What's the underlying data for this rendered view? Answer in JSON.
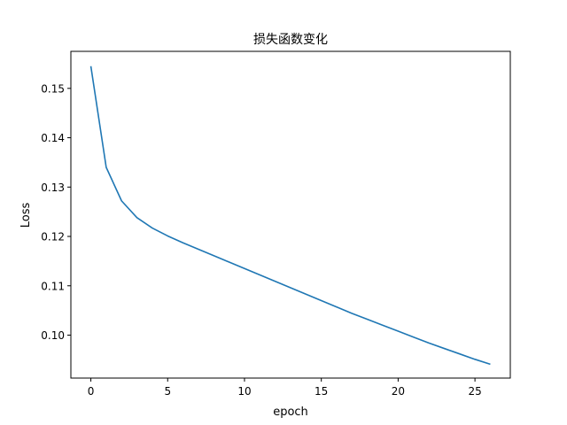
{
  "chart_data": {
    "type": "line",
    "title": "损失函数变化",
    "xlabel": "epoch",
    "ylabel": "Loss",
    "xlim": [
      -1.3,
      27.3
    ],
    "ylim": [
      0.0913,
      0.1575
    ],
    "xticks": [
      0,
      5,
      10,
      15,
      20,
      25
    ],
    "yticks": [
      0.1,
      0.11,
      0.12,
      0.13,
      0.14,
      0.15
    ],
    "xtick_labels": [
      "0",
      "5",
      "10",
      "15",
      "20",
      "25"
    ],
    "ytick_labels": [
      "0.10",
      "0.11",
      "0.12",
      "0.13",
      "0.14",
      "0.15"
    ],
    "grid": false,
    "series": [
      {
        "color": "#1f77b4",
        "x": [
          0,
          1,
          2,
          3,
          4,
          5,
          6,
          7,
          8,
          9,
          10,
          11,
          12,
          13,
          14,
          15,
          16,
          17,
          18,
          19,
          20,
          21,
          22,
          23,
          24,
          25,
          26
        ],
        "y": [
          0.1545,
          0.134,
          0.1272,
          0.1238,
          0.1217,
          0.1201,
          0.1187,
          0.1174,
          0.1161,
          0.1148,
          0.1135,
          0.1122,
          0.1109,
          0.1096,
          0.1083,
          0.107,
          0.1057,
          0.1044,
          0.1032,
          0.102,
          0.1008,
          0.0996,
          0.0984,
          0.0973,
          0.0962,
          0.0951,
          0.0941
        ]
      }
    ]
  }
}
